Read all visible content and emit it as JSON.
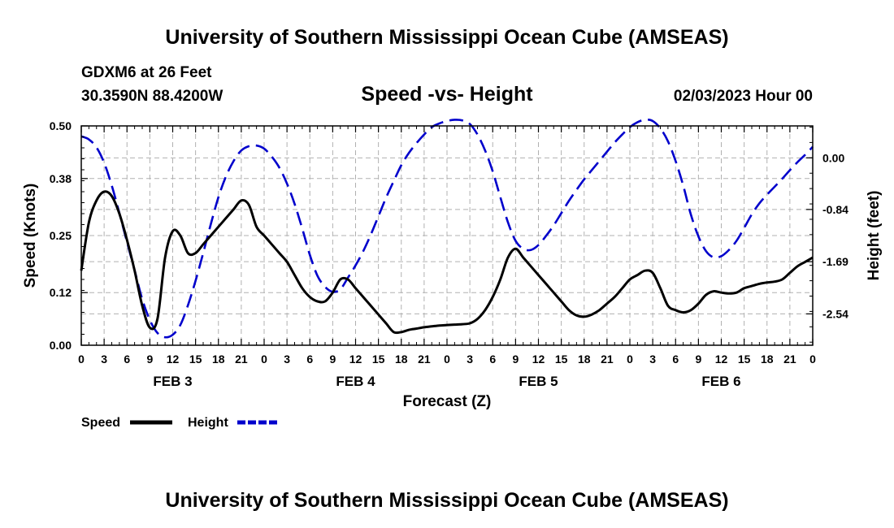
{
  "header": {
    "title": "University of Southern Mississippi Ocean Cube (AMSEAS)",
    "station": "GDXM6 at 26 Feet",
    "coords": "30.3590N  88.4200W",
    "chart_title": "Speed -vs- Height",
    "datetime": "02/03/2023 Hour 00"
  },
  "footer": {
    "title": "University of Southern Mississippi Ocean Cube (AMSEAS)"
  },
  "colors": {
    "speed": "#000000",
    "height": "#0000cc",
    "grid": "#b0b0b0"
  },
  "chart_data": {
    "type": "line",
    "title": "Speed -vs- Height",
    "xlabel": "Forecast (Z)",
    "ylabel": "Speed (Knots)",
    "y2label": "Height (feet)",
    "x_range": [
      0,
      96
    ],
    "ylim": [
      0,
      0.5
    ],
    "y2lim": [
      -3.05,
      0.52
    ],
    "yticks": [
      "0.00",
      "0.12",
      "0.25",
      "0.38",
      "0.50"
    ],
    "y2ticks": [
      "0.00",
      "-0.84",
      "-1.69",
      "-2.54"
    ],
    "xtick_labels": [
      "0",
      "3",
      "6",
      "9",
      "12",
      "15",
      "18",
      "21",
      "0",
      "3",
      "6",
      "9",
      "12",
      "15",
      "18",
      "21",
      "0",
      "3",
      "6",
      "9",
      "12",
      "15",
      "18",
      "21",
      "0",
      "3",
      "6",
      "9",
      "12",
      "15",
      "18",
      "21",
      "0"
    ],
    "date_labels": [
      {
        "label": "FEB 3",
        "hour": 12
      },
      {
        "label": "FEB 4",
        "hour": 36
      },
      {
        "label": "FEB 5",
        "hour": 60
      },
      {
        "label": "FEB 6",
        "hour": 84
      }
    ],
    "grid": true,
    "legend": [
      {
        "name": "Speed",
        "style": "solid"
      },
      {
        "name": "Height",
        "style": "dashed"
      }
    ],
    "series": [
      {
        "name": "Speed",
        "axis": "left",
        "x": [
          0,
          1,
          2,
          3,
          4,
          5,
          6,
          7,
          8,
          9,
          10,
          11,
          12,
          13,
          14,
          15,
          16,
          17,
          18,
          19,
          20,
          21,
          22,
          23,
          24,
          25,
          26,
          27,
          28,
          29,
          30,
          31,
          32,
          33,
          34,
          35,
          36,
          37,
          38,
          39,
          40,
          41,
          42,
          43,
          44,
          45,
          46,
          47,
          48,
          49,
          50,
          51,
          52,
          53,
          54,
          55,
          56,
          57,
          58,
          59,
          60,
          61,
          62,
          63,
          64,
          65,
          66,
          67,
          68,
          69,
          70,
          71,
          72,
          73,
          74,
          75,
          76,
          77,
          78,
          79,
          80,
          81,
          82,
          83,
          84,
          85,
          86,
          87,
          88,
          89,
          90,
          91,
          92,
          93,
          94,
          95,
          96
        ],
        "values": [
          0.17,
          0.28,
          0.33,
          0.35,
          0.34,
          0.3,
          0.24,
          0.17,
          0.09,
          0.04,
          0.06,
          0.2,
          0.26,
          0.25,
          0.21,
          0.21,
          0.23,
          0.25,
          0.27,
          0.29,
          0.31,
          0.33,
          0.32,
          0.27,
          0.25,
          0.23,
          0.21,
          0.19,
          0.16,
          0.13,
          0.11,
          0.1,
          0.1,
          0.12,
          0.15,
          0.15,
          0.13,
          0.11,
          0.09,
          0.07,
          0.05,
          0.03,
          0.03,
          0.035,
          0.038,
          0.041,
          0.043,
          0.045,
          0.046,
          0.047,
          0.048,
          0.05,
          0.06,
          0.08,
          0.11,
          0.15,
          0.2,
          0.22,
          0.2,
          0.18,
          0.16,
          0.14,
          0.12,
          0.1,
          0.08,
          0.068,
          0.065,
          0.07,
          0.08,
          0.095,
          0.11,
          0.13,
          0.15,
          0.16,
          0.17,
          0.165,
          0.13,
          0.09,
          0.08,
          0.075,
          0.08,
          0.095,
          0.115,
          0.123,
          0.12,
          0.118,
          0.12,
          0.13,
          0.135,
          0.14,
          0.143,
          0.145,
          0.15,
          0.165,
          0.18,
          0.19,
          0.2
        ]
      },
      {
        "name": "Height",
        "axis": "right",
        "x": [
          0,
          1,
          2,
          3,
          4,
          5,
          6,
          7,
          8,
          9,
          10,
          11,
          12,
          13,
          14,
          15,
          16,
          17,
          18,
          19,
          20,
          21,
          22,
          23,
          24,
          25,
          26,
          27,
          28,
          29,
          30,
          31,
          32,
          33,
          34,
          35,
          36,
          37,
          38,
          39,
          40,
          41,
          42,
          43,
          44,
          45,
          46,
          47,
          48,
          49,
          50,
          51,
          52,
          53,
          54,
          55,
          56,
          57,
          58,
          59,
          60,
          61,
          62,
          63,
          64,
          65,
          66,
          67,
          68,
          69,
          70,
          71,
          72,
          73,
          74,
          75,
          76,
          77,
          78,
          79,
          80,
          81,
          82,
          83,
          84,
          85,
          86,
          87,
          88,
          89,
          90,
          91,
          92,
          93,
          94,
          95,
          96
        ],
        "values": [
          0.35,
          0.3,
          0.17,
          -0.08,
          -0.45,
          -0.9,
          -1.37,
          -1.83,
          -2.3,
          -2.64,
          -2.85,
          -2.92,
          -2.88,
          -2.72,
          -2.4,
          -2.0,
          -1.55,
          -1.08,
          -0.64,
          -0.3,
          -0.05,
          0.12,
          0.19,
          0.2,
          0.15,
          0.02,
          -0.16,
          -0.42,
          -0.75,
          -1.15,
          -1.58,
          -1.92,
          -2.1,
          -2.18,
          -2.14,
          -1.95,
          -1.75,
          -1.52,
          -1.25,
          -0.95,
          -0.65,
          -0.38,
          -0.12,
          0.08,
          0.24,
          0.38,
          0.5,
          0.56,
          0.6,
          0.62,
          0.61,
          0.55,
          0.38,
          0.12,
          -0.22,
          -0.64,
          -1.05,
          -1.35,
          -1.48,
          -1.5,
          -1.42,
          -1.27,
          -1.1,
          -0.9,
          -0.7,
          -0.52,
          -0.35,
          -0.2,
          -0.05,
          0.1,
          0.25,
          0.38,
          0.5,
          0.58,
          0.62,
          0.6,
          0.48,
          0.27,
          -0.05,
          -0.45,
          -0.92,
          -1.28,
          -1.52,
          -1.62,
          -1.6,
          -1.5,
          -1.35,
          -1.14,
          -0.92,
          -0.74,
          -0.6,
          -0.47,
          -0.34,
          -0.2,
          -0.07,
          0.05,
          0.18
        ]
      }
    ]
  }
}
